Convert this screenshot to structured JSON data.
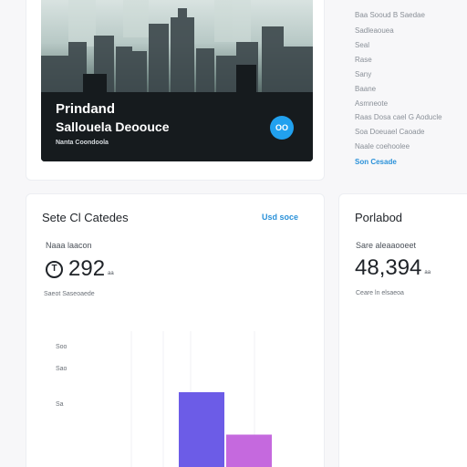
{
  "hero": {
    "title": "Prindand",
    "subtitle": "Sallouela Deoouce",
    "caption": "Nanta Coondoola",
    "badge": "OO"
  },
  "side_list": {
    "items": [
      "Baa Sooud B Saedae",
      "Sadleaouea",
      "Seal",
      "Rase",
      "Sany",
      "Baane",
      "Asmneote",
      "Raas Dosa cael G Aoducle",
      "Soa Doeuael Caoade",
      "Naale coehoolee"
    ],
    "link": "Son Cesade"
  },
  "stats": {
    "title": "Sete Cl Catedes",
    "link": "Usd soce",
    "metric_label": "Naaa laacon",
    "metric_icon": "T",
    "metric_value": "292",
    "metric_unit": "aa",
    "note": "Saeot Saseoaede"
  },
  "right_card": {
    "title": "Porlabod",
    "label": "Sare aleaaooeet",
    "value": "48,394",
    "unit": "aa",
    "note": "Ceare ln elsaeoa"
  },
  "chart_data": {
    "type": "bar",
    "yticks": [
      "Soo",
      "Sao",
      "Sa"
    ],
    "series": [
      {
        "color": "#6c5ce7",
        "values": [
          0.62
        ]
      },
      {
        "color": "#c569de",
        "values": [
          0.31
        ]
      }
    ]
  }
}
